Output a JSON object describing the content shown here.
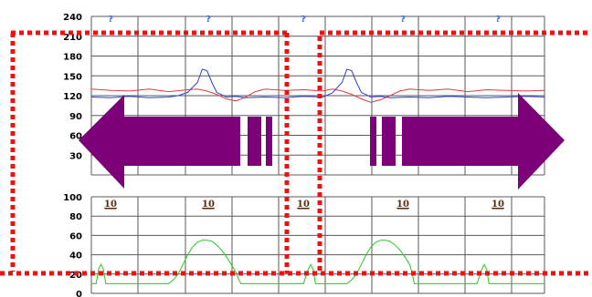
{
  "chart_data": [
    {
      "type": "line",
      "ylim": [
        0,
        240
      ],
      "yticks": [
        240,
        210,
        180,
        150,
        120,
        90,
        60,
        30
      ],
      "markers": [
        "?",
        "?",
        "?",
        "?",
        "?"
      ],
      "grid": true,
      "series": [
        {
          "color": "#e8393a",
          "x": [
            0,
            4,
            8,
            12,
            16,
            20,
            22,
            24,
            26,
            28,
            30,
            32,
            34,
            36,
            40,
            44,
            48,
            50,
            52,
            54,
            56,
            58,
            60,
            62,
            64,
            66,
            70,
            74,
            78,
            82,
            86,
            90,
            94
          ],
          "values": [
            130,
            128,
            127,
            130,
            126,
            129,
            130,
            127,
            122,
            115,
            112,
            118,
            126,
            130,
            128,
            129,
            127,
            130,
            127,
            122,
            115,
            110,
            114,
            120,
            127,
            130,
            128,
            130,
            126,
            129,
            128,
            127,
            128
          ]
        },
        {
          "color": "#2d3fd0",
          "x": [
            0,
            4,
            8,
            12,
            16,
            18,
            20,
            22,
            23,
            24,
            25,
            26,
            28,
            30,
            32,
            36,
            40,
            44,
            48,
            50,
            52,
            53,
            54,
            55,
            56,
            58,
            60,
            62,
            66,
            70,
            74,
            78,
            82,
            86,
            90,
            94
          ],
          "values": [
            118,
            117,
            119,
            117,
            118,
            120,
            125,
            140,
            160,
            158,
            140,
            125,
            118,
            119,
            117,
            118,
            117,
            119,
            118,
            124,
            140,
            160,
            158,
            140,
            125,
            118,
            119,
            117,
            118,
            117,
            119,
            118,
            117,
            118,
            119,
            118
          ]
        }
      ]
    },
    {
      "type": "line",
      "ylim": [
        0,
        100
      ],
      "yticks": [
        100,
        80,
        60,
        40,
        20,
        0
      ],
      "data_labels": [
        "10",
        "10",
        "10",
        "10",
        "10"
      ],
      "grid": true,
      "series": [
        {
          "color": "#22cc22",
          "x": [
            0,
            1,
            1.5,
            2,
            2.5,
            3,
            4,
            8,
            12,
            14,
            16,
            17,
            18,
            19,
            20,
            21,
            22,
            23,
            24,
            25,
            26,
            27,
            28,
            29,
            30,
            30.5,
            31,
            32,
            36,
            40,
            44,
            45,
            45.5,
            46,
            46.5,
            47,
            48,
            50,
            53,
            54,
            55,
            56,
            57,
            58,
            59,
            60,
            61,
            62,
            63,
            64,
            65,
            66,
            66.5,
            67,
            68,
            72,
            76,
            80,
            81,
            81.5,
            82,
            82.5,
            83,
            84,
            88,
            90,
            94
          ],
          "values": [
            10,
            10,
            25,
            30,
            25,
            10,
            10,
            10,
            10,
            10,
            10,
            14,
            20,
            30,
            40,
            48,
            53,
            55,
            55,
            54,
            50,
            45,
            38,
            30,
            22,
            15,
            10,
            10,
            10,
            10,
            10,
            25,
            30,
            25,
            10,
            10,
            10,
            10,
            10,
            14,
            20,
            30,
            40,
            48,
            53,
            55,
            55,
            54,
            50,
            45,
            38,
            30,
            22,
            10,
            10,
            10,
            10,
            10,
            25,
            30,
            25,
            10,
            10,
            10,
            10,
            10,
            10
          ]
        }
      ]
    }
  ]
}
